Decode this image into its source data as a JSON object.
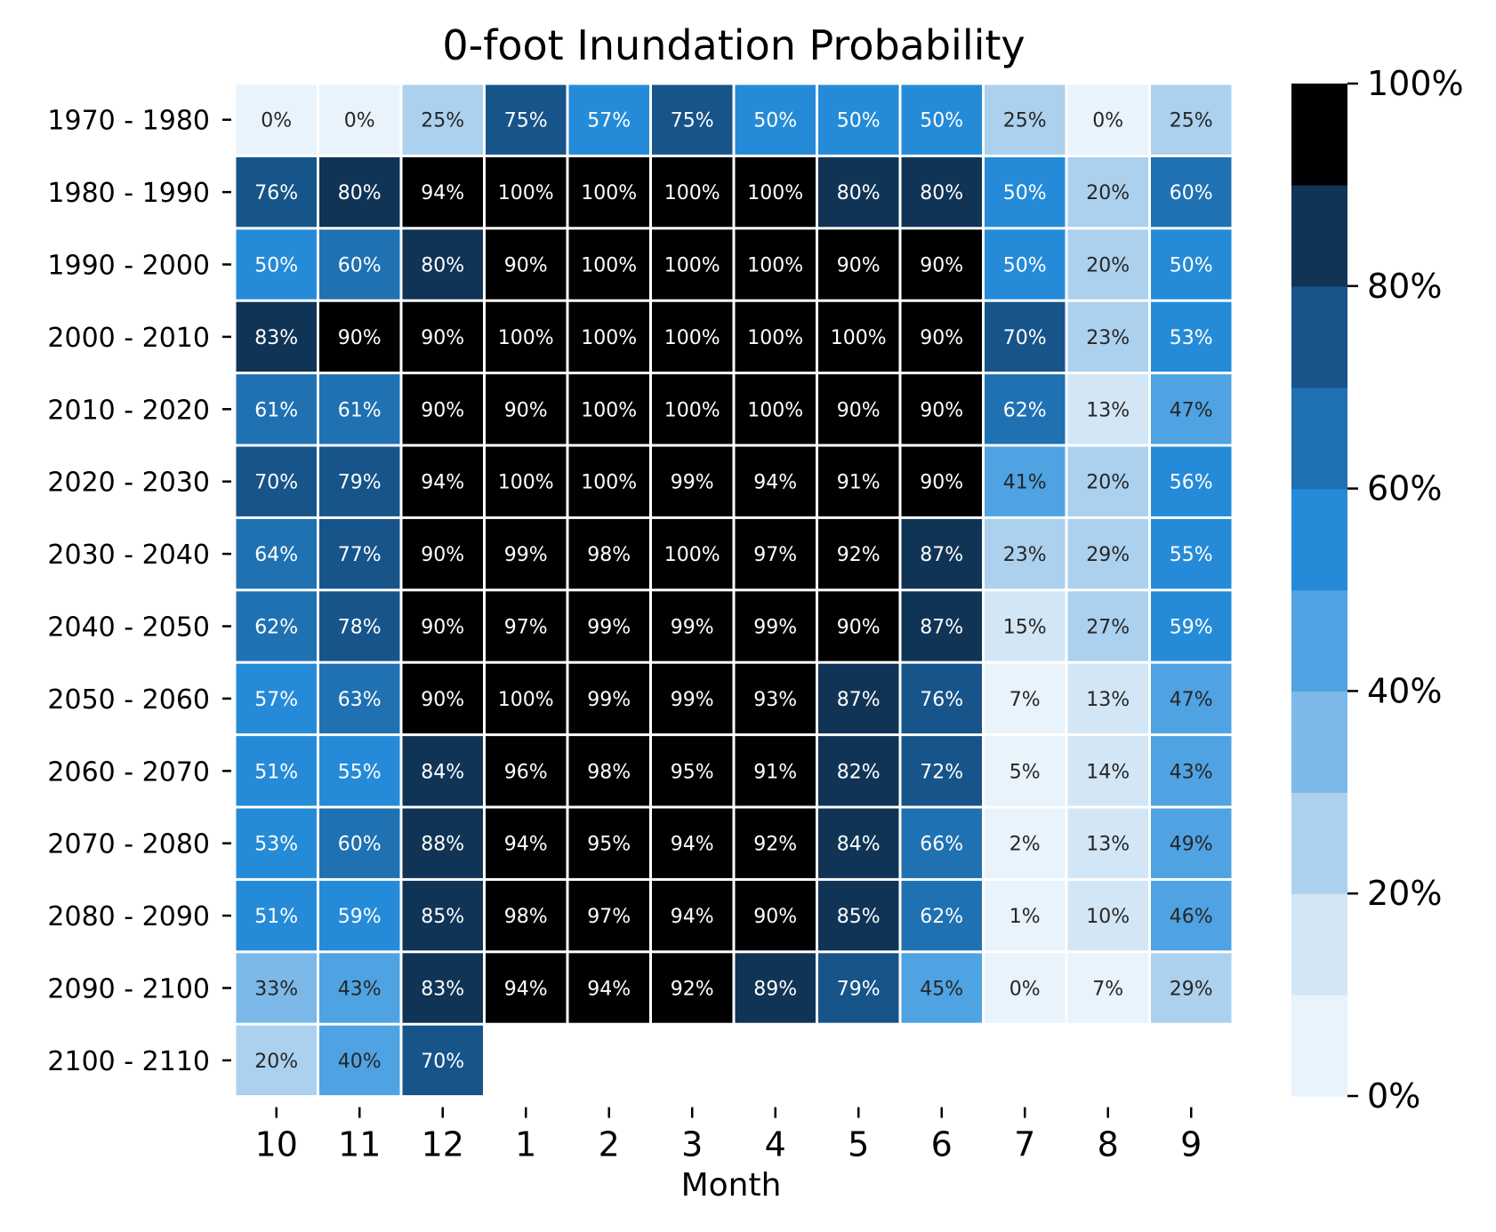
{
  "chart_data": {
    "type": "heatmap",
    "title": "0-foot Inundation Probability",
    "xlabel": "Month",
    "ylabel": "",
    "x_categories": [
      "10",
      "11",
      "12",
      "1",
      "2",
      "3",
      "4",
      "5",
      "6",
      "7",
      "8",
      "9"
    ],
    "y_categories": [
      "1970 - 1980",
      "1980 - 1990",
      "1990 - 2000",
      "2000 - 2010",
      "2010 - 2020",
      "2020 - 2030",
      "2030 - 2040",
      "2040 - 2050",
      "2050 - 2060",
      "2060 - 2070",
      "2070 - 2080",
      "2080 - 2090",
      "2090 - 2100",
      "2100 - 2110"
    ],
    "values": [
      [
        0,
        0,
        25,
        75,
        57,
        75,
        50,
        50,
        50,
        25,
        0,
        25
      ],
      [
        76,
        80,
        94,
        100,
        100,
        100,
        100,
        80,
        80,
        50,
        20,
        60
      ],
      [
        50,
        60,
        80,
        90,
        100,
        100,
        100,
        90,
        90,
        50,
        20,
        50
      ],
      [
        83,
        90,
        90,
        100,
        100,
        100,
        100,
        100,
        90,
        70,
        23,
        53
      ],
      [
        61,
        61,
        90,
        90,
        100,
        100,
        100,
        90,
        90,
        62,
        13,
        47
      ],
      [
        70,
        79,
        94,
        100,
        100,
        99,
        94,
        91,
        90,
        41,
        20,
        56
      ],
      [
        64,
        77,
        90,
        99,
        98,
        100,
        97,
        92,
        87,
        23,
        29,
        55
      ],
      [
        62,
        78,
        90,
        97,
        99,
        99,
        99,
        90,
        87,
        15,
        27,
        59
      ],
      [
        57,
        63,
        90,
        100,
        99,
        99,
        93,
        87,
        76,
        7,
        13,
        47
      ],
      [
        51,
        55,
        84,
        96,
        98,
        95,
        91,
        82,
        72,
        5,
        14,
        43
      ],
      [
        53,
        60,
        88,
        94,
        95,
        94,
        92,
        84,
        66,
        2,
        13,
        49
      ],
      [
        51,
        59,
        85,
        98,
        97,
        94,
        90,
        85,
        62,
        1,
        10,
        46
      ],
      [
        33,
        43,
        83,
        94,
        94,
        92,
        89,
        79,
        45,
        0,
        7,
        29
      ],
      [
        20,
        40,
        70,
        null,
        null,
        null,
        null,
        null,
        null,
        null,
        null,
        null
      ]
    ],
    "value_suffix": "%",
    "colorbar": {
      "min": 0,
      "max": 100,
      "ticks": [
        0,
        20,
        40,
        60,
        80,
        100
      ],
      "tick_labels": [
        "0%",
        "20%",
        "40%",
        "60%",
        "80%",
        "100%"
      ],
      "colors": [
        "#e9f3fb",
        "#d2e6f6",
        "#acd1ef",
        "#7cb9e8",
        "#4fa3e2",
        "#258bd8",
        "#1f71b2",
        "#17548a",
        "#103456",
        "#000000"
      ]
    },
    "grid": false
  }
}
